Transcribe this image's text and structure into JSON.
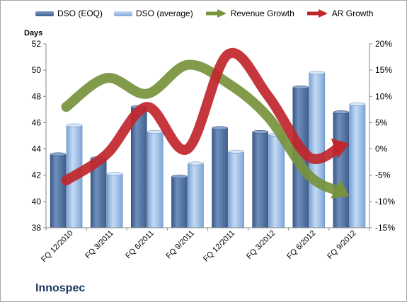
{
  "chart_data": {
    "type": "bar",
    "title": "",
    "brand": "Innospec",
    "ylabel": "Days",
    "categories": [
      "FQ 12/2010",
      "FQ 3/2011",
      "FQ 6/2011",
      "FQ 9/2011",
      "FQ 12/2011",
      "FQ 3/2012",
      "FQ 6/2012",
      "FQ 9/2012"
    ],
    "ylim": [
      38,
      52
    ],
    "yticks": [
      "38",
      "40",
      "42",
      "44",
      "46",
      "48",
      "50",
      "52"
    ],
    "y2lim": [
      -15,
      20
    ],
    "y2ticks": [
      "-15%",
      "-10%",
      "-5%",
      "0%",
      "5%",
      "10%",
      "15%",
      "20%"
    ],
    "grid": false,
    "legend_position": "top",
    "series": [
      {
        "name": "DSO (EOQ)",
        "kind": "bar",
        "axis": "left",
        "color": "#4f6e99",
        "values": [
          43.6,
          43.3,
          47.2,
          41.9,
          45.6,
          45.3,
          48.7,
          46.8
        ]
      },
      {
        "name": "DSO (average)",
        "kind": "bar",
        "axis": "left",
        "color": "#8eb4e3",
        "values": [
          45.8,
          42.1,
          45.3,
          42.9,
          43.8,
          45.1,
          49.8,
          47.4
        ]
      },
      {
        "name": "Revenue Growth",
        "kind": "arrow-line",
        "axis": "right",
        "color": "#77933c",
        "values": [
          8,
          13.5,
          10.5,
          16,
          12.5,
          6,
          -5,
          -9
        ]
      },
      {
        "name": "AR Growth",
        "kind": "arrow-line",
        "axis": "right",
        "color": "#c0262b",
        "values": [
          -6,
          -1,
          8,
          0,
          18,
          10,
          -1.5,
          1
        ]
      }
    ]
  }
}
